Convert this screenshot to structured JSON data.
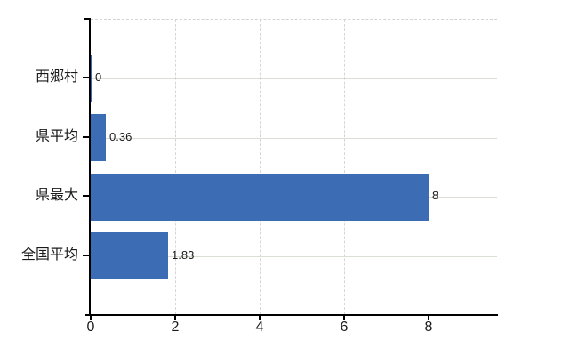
{
  "chart_data": {
    "type": "bar",
    "orientation": "horizontal",
    "title": "",
    "categories": [
      "西郷村",
      "県平均",
      "県最大",
      "全国平均"
    ],
    "values": [
      0,
      0.36,
      8,
      1.83
    ],
    "data_labels": [
      "0",
      "0.36",
      "8",
      "1.83"
    ],
    "x_ticks": [
      0,
      2,
      4,
      6,
      8
    ],
    "x_tick_labels": [
      "0",
      "2",
      "4",
      "6",
      "8"
    ],
    "xlim": [
      0,
      9.62
    ],
    "grid": true,
    "legend": false,
    "colors": {
      "bar": "#3c6cb4",
      "h_grid": "#d9e0d3",
      "v_grid": "#d6d6d6",
      "plot_border": "#d3d3d3",
      "axis": "#000000",
      "text": "#1a1a1a"
    }
  }
}
